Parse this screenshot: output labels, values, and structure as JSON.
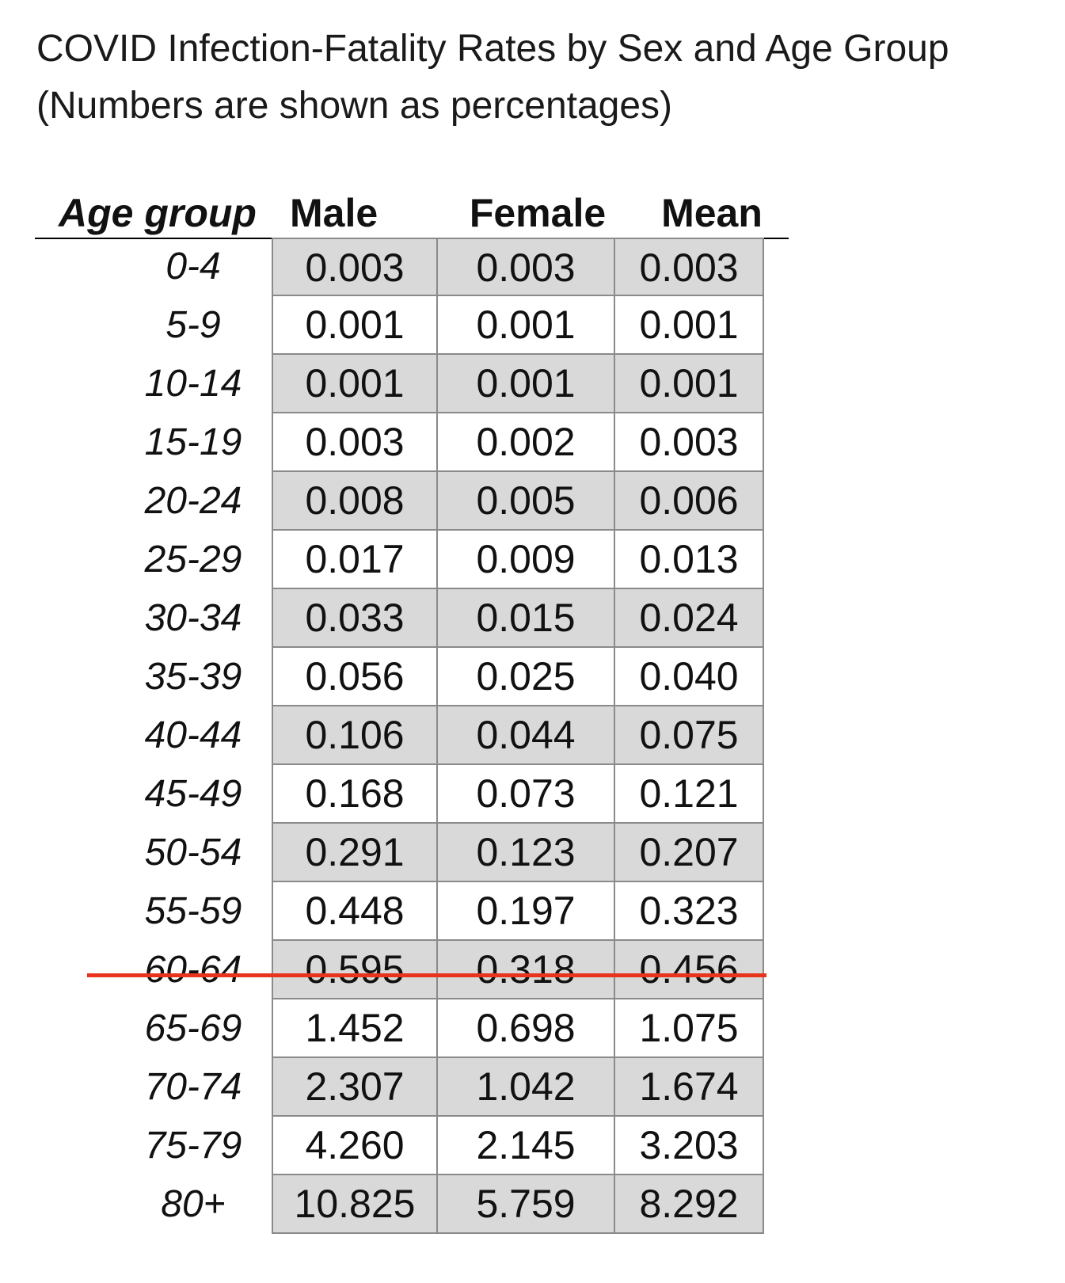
{
  "title": {
    "line1": "COVID Infection-Fatality Rates by Sex and Age Group",
    "line2": "(Numbers are shown as percentages)"
  },
  "colors": {
    "shade": "#d9d9d9",
    "divider": "#e8341c"
  },
  "table": {
    "headers": [
      "Age group",
      "Male",
      "Female",
      "Mean"
    ],
    "rows": [
      {
        "age": "0-4",
        "male": "0.003",
        "female": "0.003",
        "mean": "0.003"
      },
      {
        "age": "5-9",
        "male": "0.001",
        "female": "0.001",
        "mean": "0.001"
      },
      {
        "age": "10-14",
        "male": "0.001",
        "female": "0.001",
        "mean": "0.001"
      },
      {
        "age": "15-19",
        "male": "0.003",
        "female": "0.002",
        "mean": "0.003"
      },
      {
        "age": "20-24",
        "male": "0.008",
        "female": "0.005",
        "mean": "0.006"
      },
      {
        "age": "25-29",
        "male": "0.017",
        "female": "0.009",
        "mean": "0.013"
      },
      {
        "age": "30-34",
        "male": "0.033",
        "female": "0.015",
        "mean": "0.024"
      },
      {
        "age": "35-39",
        "male": "0.056",
        "female": "0.025",
        "mean": "0.040"
      },
      {
        "age": "40-44",
        "male": "0.106",
        "female": "0.044",
        "mean": "0.075"
      },
      {
        "age": "45-49",
        "male": "0.168",
        "female": "0.073",
        "mean": "0.121"
      },
      {
        "age": "50-54",
        "male": "0.291",
        "female": "0.123",
        "mean": "0.207"
      },
      {
        "age": "55-59",
        "male": "0.448",
        "female": "0.197",
        "mean": "0.323"
      },
      {
        "age": "60-64",
        "male": "0.595",
        "female": "0.318",
        "mean": "0.456"
      },
      {
        "age": "65-69",
        "male": "1.452",
        "female": "0.698",
        "mean": "1.075"
      },
      {
        "age": "70-74",
        "male": "2.307",
        "female": "1.042",
        "mean": "1.674"
      },
      {
        "age": "75-79",
        "male": "4.260",
        "female": "2.145",
        "mean": "3.203"
      },
      {
        "age": "80+",
        "male": "10.825",
        "female": "5.759",
        "mean": "8.292"
      }
    ]
  }
}
